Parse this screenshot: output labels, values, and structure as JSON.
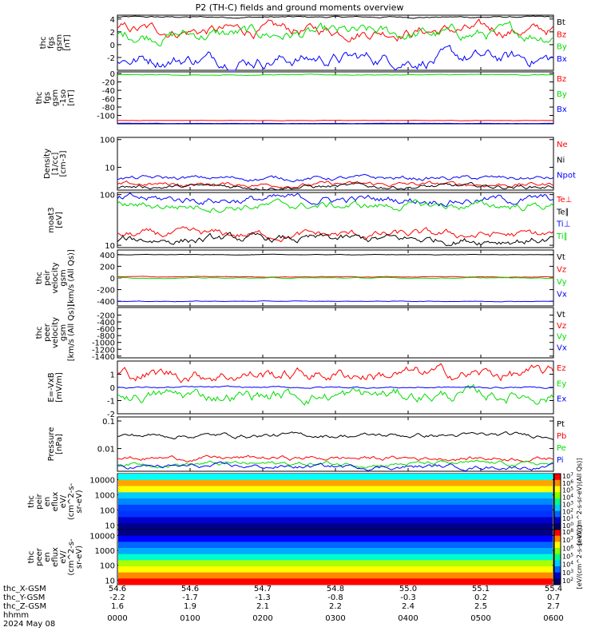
{
  "title": "P2 (TH-C) fields and ground moments overview",
  "colors": {
    "black": "#000000",
    "red": "#ff0000",
    "green": "#00dd00",
    "blue": "#0000ff",
    "magenta": "#ff00ff"
  },
  "chart_data": [
    {
      "type": "line",
      "ylabel_lines": [
        "thc",
        "fgs",
        "gsm",
        "[nT]"
      ],
      "ylim": [
        -4,
        4.6
      ],
      "yticks": [
        4,
        2,
        0,
        -2
      ],
      "series": [
        {
          "name": "Bt",
          "color": "black",
          "base": 4.3,
          "amp": 0.15
        },
        {
          "name": "Bz",
          "color": "red",
          "base": 2.2,
          "amp": 1.2
        },
        {
          "name": "By",
          "color": "green",
          "base": 1.6,
          "amp": 1.3
        },
        {
          "name": "Bx",
          "color": "blue",
          "base": -2.2,
          "amp": 1.4
        }
      ]
    },
    {
      "type": "line",
      "ylabel_lines": [
        "thc",
        "fgs",
        "gsm",
        "-1so",
        "[nT]"
      ],
      "ylim": [
        -120,
        4
      ],
      "yticks": [
        0,
        -20,
        -40,
        -60,
        -80,
        -100
      ],
      "series": [
        {
          "name": "Bz",
          "color": "red",
          "base": -112,
          "amp": 0.6
        },
        {
          "name": "By",
          "color": "green",
          "base": -3,
          "amp": 1.2
        },
        {
          "name": "Bx",
          "color": "blue",
          "base": -119,
          "amp": 0.3
        }
      ]
    },
    {
      "type": "line",
      "log": true,
      "ylabel_lines": [
        "Density",
        "[1/cc]",
        "[cm-3]"
      ],
      "ylim": [
        1.5,
        120
      ],
      "yticks": [
        100,
        10
      ],
      "series": [
        {
          "name": "Ne",
          "color": "red",
          "base": 2.4,
          "amp": 0.4
        },
        {
          "name": "Ni",
          "color": "black",
          "base": 2.0,
          "amp": 0.3
        },
        {
          "name": "Npot",
          "color": "blue",
          "base": 4.0,
          "amp": 0.2
        }
      ]
    },
    {
      "type": "line",
      "log": true,
      "ylabel_lines": [
        "moat3",
        "[eV]"
      ],
      "ylim": [
        9,
        110
      ],
      "yticks": [
        100,
        10
      ],
      "series": [
        {
          "name": "Te⊥",
          "color": "red",
          "base": 16,
          "amp": 2
        },
        {
          "name": "Te∥",
          "color": "black",
          "base": 13,
          "amp": 1.4
        },
        {
          "name": "Ti⊥",
          "color": "blue",
          "base": 80,
          "amp": 10
        },
        {
          "name": "Ti∥",
          "color": "green",
          "base": 60,
          "amp": 12
        }
      ]
    },
    {
      "type": "line",
      "ylabel_lines": [
        "thc",
        "peir",
        "velocity",
        "gsm",
        "[km/s (All Qs)]"
      ],
      "ylim": [
        -480,
        480
      ],
      "yticks": [
        400,
        200,
        0,
        -200,
        -400
      ],
      "series": [
        {
          "name": "Vt",
          "color": "black",
          "base": 400,
          "amp": 5
        },
        {
          "name": "Vz",
          "color": "red",
          "base": 20,
          "amp": 8
        },
        {
          "name": "Vy",
          "color": "green",
          "base": 0,
          "amp": 8
        },
        {
          "name": "Vx",
          "color": "blue",
          "base": -400,
          "amp": 6
        }
      ]
    },
    {
      "type": "line",
      "ylabel_lines": [
        "thc",
        "peer",
        "velocity",
        "gsm",
        "[km/s (All Qs)]"
      ],
      "ylim": [
        -1450,
        20
      ],
      "yticks": [
        -200,
        -400,
        -600,
        -800,
        -1000,
        -1200,
        -1400
      ],
      "series": [
        {
          "name": "Vt",
          "color": "black",
          "base": null,
          "amp": 0
        },
        {
          "name": "Vz",
          "color": "red",
          "base": null,
          "amp": 0
        },
        {
          "name": "Vy",
          "color": "green",
          "base": null,
          "amp": 0
        },
        {
          "name": "Vx",
          "color": "blue",
          "base": null,
          "amp": 0
        }
      ]
    },
    {
      "type": "line",
      "ylabel_lines": [
        "E=-VxB",
        "[mV/m]"
      ],
      "ylim": [
        -2,
        2
      ],
      "yticks": [
        1,
        0,
        -1,
        -2
      ],
      "series": [
        {
          "name": "Ez",
          "color": "red",
          "base": 1.0,
          "amp": 0.6
        },
        {
          "name": "Ey",
          "color": "green",
          "base": -0.6,
          "amp": 0.6
        },
        {
          "name": "Ex",
          "color": "blue",
          "base": 0,
          "amp": 0.08
        }
      ]
    },
    {
      "type": "line",
      "log": true,
      "ylabel_lines": [
        "Pressure",
        "[nPa]"
      ],
      "ylim": [
        0.0015,
        0.14
      ],
      "yticks": [
        0.1,
        0.01
      ],
      "series": [
        {
          "name": "Pt",
          "color": "black",
          "base": 0.03,
          "amp": 0.004
        },
        {
          "name": "Pb",
          "color": "red",
          "base": 0.0045,
          "amp": 0.001
        },
        {
          "name": "Pe",
          "color": "green",
          "base": 0.0028,
          "amp": 0.0006
        },
        {
          "name": "Pi",
          "color": "blue",
          "base": 0.0022,
          "amp": 0.0004
        }
      ]
    },
    {
      "type": "heatmap",
      "log": true,
      "ylabel_lines": [
        "thc",
        "peir",
        "en",
        "eflux",
        "eV/",
        "(cm^2-s-",
        "sr-eV)"
      ],
      "ylim": [
        5,
        25000
      ],
      "yticks": [
        10000,
        1000,
        100,
        10
      ]
    },
    {
      "type": "heatmap",
      "log": true,
      "ylabel_lines": [
        "thc",
        "peer",
        "en",
        "eflux",
        "eV/",
        "(cm^2-s-",
        "sr-eV)"
      ],
      "ylim": [
        5,
        25000
      ],
      "yticks": [
        10000,
        1000,
        100,
        10
      ]
    }
  ],
  "colorbar_top": {
    "exponents": [
      "7",
      "6",
      "5",
      "4",
      "3",
      "2",
      "1",
      "0"
    ],
    "label": "[eV/(cm^2-s-sr-eV)(All Qs)]"
  },
  "colorbar_bottom": {
    "exponents": [
      "8",
      "7",
      "6",
      "5",
      "4",
      "3",
      "2"
    ],
    "label": "[eV/(cm^2-s-sr-eV)]"
  },
  "footer": {
    "row_labels": [
      "thc_X-GSM",
      "thc_Y-GSM",
      "thc_Z-GSM",
      "hhmm",
      "2024 May 08"
    ],
    "ticks": [
      {
        "x": "54.6",
        "y": "-2.2",
        "z": "1.6",
        "t": "0000"
      },
      {
        "x": "54.6",
        "y": "-1.7",
        "z": "1.9",
        "t": "0100"
      },
      {
        "x": "54.7",
        "y": "-1.3",
        "z": "2.1",
        "t": "0200"
      },
      {
        "x": "54.8",
        "y": "-0.8",
        "z": "2.2",
        "t": "0300"
      },
      {
        "x": "55.0",
        "y": "-0.3",
        "z": "2.4",
        "t": "0400"
      },
      {
        "x": "55.1",
        "y": "0.2",
        "z": "2.5",
        "t": "0500"
      },
      {
        "x": "55.4",
        "y": "0.7",
        "z": "2.7",
        "t": "0600"
      }
    ]
  }
}
